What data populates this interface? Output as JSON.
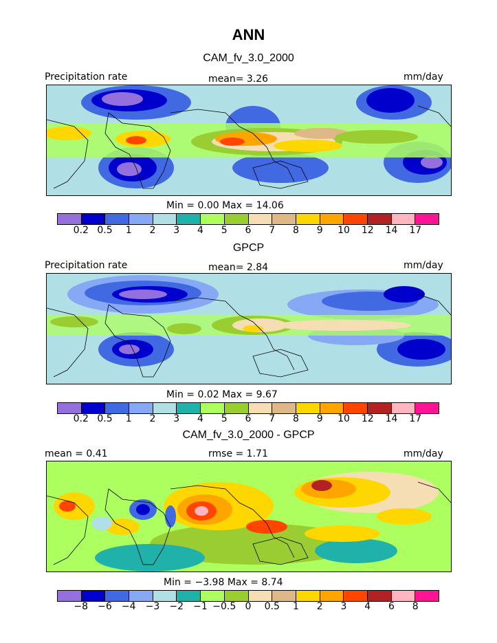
{
  "title": "ANN",
  "colors_abs": [
    "#9370db",
    "#0000cd",
    "#4169e1",
    "#87a9f5",
    "#b0e0e6",
    "#20b2aa",
    "#adff5f",
    "#9acd32",
    "#f5deb3",
    "#deb887",
    "#ffd700",
    "#ffa500",
    "#ff4500",
    "#b22222",
    "#ffb6c1",
    "#ff1493"
  ],
  "colors_diff": [
    "#9370db",
    "#0000cd",
    "#4169e1",
    "#87a9f5",
    "#b0e0e6",
    "#20b2aa",
    "#adff5f",
    "#9acd32",
    "#f5deb3",
    "#deb887",
    "#ffd700",
    "#ffa500",
    "#ff4500",
    "#b22222",
    "#ffb6c1",
    "#ff1493"
  ],
  "panels": [
    {
      "subtitle": "CAM_fv_3.0_2000",
      "left_label": "Precipitation rate",
      "center_label": "mean=   3.26",
      "right_label": "mm/day",
      "minmax": "Min =    0.00  Max =   14.06",
      "ticks": [
        "0.2",
        "0.5",
        "1",
        "2",
        "3",
        "4",
        "5",
        "6",
        "7",
        "8",
        "9",
        "10",
        "12",
        "14",
        "17"
      ]
    },
    {
      "subtitle": "GPCP",
      "left_label": "Precipitation rate",
      "center_label": "mean=   2.84",
      "right_label": "mm/day",
      "minmax": "Min =    0.02  Max =    9.67",
      "ticks": [
        "0.2",
        "0.5",
        "1",
        "2",
        "3",
        "4",
        "5",
        "6",
        "7",
        "8",
        "9",
        "10",
        "12",
        "14",
        "17"
      ]
    },
    {
      "subtitle": "CAM_fv_3.0_2000 - GPCP",
      "left_label": "mean =   0.41",
      "center_label": "rmse =   1.71",
      "right_label": "mm/day",
      "minmax": "Min =  −3.98  Max =    8.74",
      "ticks": [
        "−8",
        "−6",
        "−4",
        "−3",
        "−2",
        "−1",
        "−0.5",
        "0",
        "0.5",
        "1",
        "2",
        "3",
        "4",
        "6",
        "8"
      ]
    }
  ]
}
